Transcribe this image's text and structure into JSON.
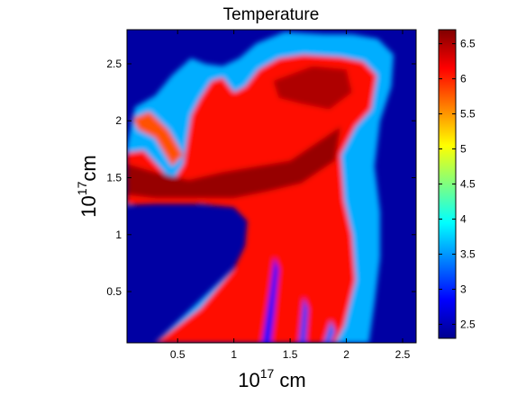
{
  "chart_data": {
    "type": "heatmap",
    "title": "Temperature",
    "xlabel": {
      "base": "10",
      "exp": "17",
      "unit": " cm"
    },
    "ylabel": {
      "base": "10",
      "exp": "17",
      "unit": "cm"
    },
    "xlim": [
      0.05,
      2.62
    ],
    "ylim": [
      0.05,
      2.8
    ],
    "xticks": [
      0.5,
      1,
      1.5,
      2,
      2.5
    ],
    "xtick_labels": [
      "0.5",
      "1",
      "1.5",
      "2",
      "2.5"
    ],
    "yticks": [
      0.5,
      1,
      1.5,
      2,
      2.5
    ],
    "ytick_labels": [
      "0.5",
      "1",
      "1.5",
      "2",
      "2.5"
    ],
    "colorbar": {
      "range": [
        2.3,
        6.7
      ],
      "ticks": [
        2.5,
        3,
        3.5,
        4,
        4.5,
        5,
        5.5,
        6,
        6.5
      ],
      "tick_labels": [
        "2.5",
        "3",
        "3.5",
        "4",
        "4.5",
        "5",
        "5.5",
        "6",
        "6.5"
      ],
      "colormap": "jet"
    },
    "background_value": 2.4,
    "regions": [
      {
        "name": "halo",
        "value": 3.6,
        "points": [
          [
            0.05,
            1.78
          ],
          [
            0.12,
            2.12
          ],
          [
            0.3,
            2.22
          ],
          [
            0.45,
            2.4
          ],
          [
            0.62,
            2.55
          ],
          [
            0.75,
            2.5
          ],
          [
            0.9,
            2.48
          ],
          [
            1.05,
            2.55
          ],
          [
            1.2,
            2.68
          ],
          [
            1.45,
            2.78
          ],
          [
            1.8,
            2.76
          ],
          [
            2.05,
            2.76
          ],
          [
            2.28,
            2.72
          ],
          [
            2.42,
            2.58
          ],
          [
            2.4,
            2.3
          ],
          [
            2.3,
            2.0
          ],
          [
            2.25,
            1.6
          ],
          [
            2.3,
            1.2
          ],
          [
            2.3,
            0.8
          ],
          [
            2.25,
            0.4
          ],
          [
            2.2,
            0.05
          ],
          [
            0.3,
            0.05
          ],
          [
            1.1,
            0.8
          ],
          [
            1.28,
            1.05
          ],
          [
            1.05,
            1.24
          ],
          [
            0.3,
            1.3
          ],
          [
            0.05,
            1.25
          ]
        ]
      },
      {
        "name": "main-flow",
        "value": 6.1,
        "points": [
          [
            0.05,
            1.72
          ],
          [
            0.2,
            1.74
          ],
          [
            0.35,
            1.58
          ],
          [
            0.45,
            1.46
          ],
          [
            0.55,
            1.62
          ],
          [
            0.62,
            2.05
          ],
          [
            0.7,
            2.2
          ],
          [
            0.8,
            2.35
          ],
          [
            0.9,
            2.38
          ],
          [
            1.0,
            2.25
          ],
          [
            1.1,
            2.3
          ],
          [
            1.22,
            2.45
          ],
          [
            1.4,
            2.55
          ],
          [
            1.62,
            2.58
          ],
          [
            1.95,
            2.56
          ],
          [
            2.15,
            2.52
          ],
          [
            2.27,
            2.4
          ],
          [
            2.22,
            2.1
          ],
          [
            2.08,
            1.95
          ],
          [
            1.95,
            1.7
          ],
          [
            1.98,
            1.3
          ],
          [
            2.05,
            1.0
          ],
          [
            2.08,
            0.6
          ],
          [
            1.98,
            0.2
          ],
          [
            1.9,
            0.05
          ],
          [
            0.3,
            0.05
          ],
          [
            0.7,
            0.35
          ],
          [
            1.0,
            0.7
          ],
          [
            1.1,
            0.9
          ],
          [
            1.12,
            1.12
          ],
          [
            1.0,
            1.24
          ],
          [
            0.7,
            1.27
          ],
          [
            0.3,
            1.27
          ],
          [
            0.05,
            1.26
          ]
        ]
      },
      {
        "name": "branch-upper-left",
        "value": 5.8,
        "points": [
          [
            0.1,
            2.02
          ],
          [
            0.25,
            2.08
          ],
          [
            0.42,
            1.92
          ],
          [
            0.55,
            1.7
          ],
          [
            0.45,
            1.6
          ],
          [
            0.3,
            1.85
          ],
          [
            0.15,
            1.92
          ]
        ]
      },
      {
        "name": "hot-core",
        "value": 6.6,
        "points": [
          [
            0.05,
            1.62
          ],
          [
            0.3,
            1.55
          ],
          [
            0.6,
            1.48
          ],
          [
            0.9,
            1.55
          ],
          [
            1.2,
            1.6
          ],
          [
            1.5,
            1.65
          ],
          [
            1.8,
            1.85
          ],
          [
            1.95,
            1.95
          ],
          [
            1.9,
            1.65
          ],
          [
            1.6,
            1.45
          ],
          [
            1.3,
            1.38
          ],
          [
            1.0,
            1.32
          ],
          [
            0.6,
            1.32
          ],
          [
            0.3,
            1.32
          ],
          [
            0.05,
            1.35
          ]
        ]
      },
      {
        "name": "upper-core",
        "value": 6.5,
        "points": [
          [
            1.35,
            2.35
          ],
          [
            1.7,
            2.48
          ],
          [
            2.0,
            2.45
          ],
          [
            2.05,
            2.25
          ],
          [
            1.85,
            2.1
          ],
          [
            1.6,
            2.15
          ],
          [
            1.4,
            2.2
          ]
        ]
      },
      {
        "name": "cool-channel-1",
        "value": 2.9,
        "points": [
          [
            1.25,
            0.05
          ],
          [
            1.32,
            0.5
          ],
          [
            1.36,
            0.8
          ],
          [
            1.4,
            0.7
          ],
          [
            1.36,
            0.3
          ],
          [
            1.33,
            0.05
          ]
        ]
      },
      {
        "name": "cool-channel-2",
        "value": 3.1,
        "points": [
          [
            1.58,
            0.05
          ],
          [
            1.62,
            0.45
          ],
          [
            1.66,
            0.35
          ],
          [
            1.64,
            0.05
          ]
        ]
      },
      {
        "name": "cool-channel-3",
        "value": 3.3,
        "points": [
          [
            1.8,
            0.05
          ],
          [
            1.86,
            0.25
          ],
          [
            1.9,
            0.15
          ],
          [
            1.86,
            0.05
          ]
        ]
      }
    ]
  }
}
